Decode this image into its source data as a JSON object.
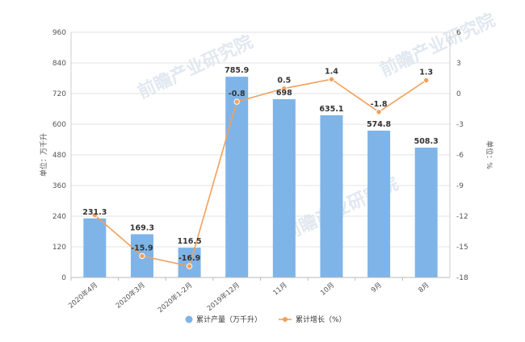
{
  "chart_data": {
    "type": "bar+line",
    "categories": [
      "2020年4月",
      "2020年3月",
      "2020年1-2月",
      "2019年12月",
      "11月",
      "10月",
      "9月",
      "8月"
    ],
    "series": [
      {
        "name": "累计产量（万千升）",
        "type": "bar",
        "axis": "left",
        "color": "#7eb4e8",
        "values": [
          231.3,
          169.3,
          116.5,
          785.9,
          698,
          635.1,
          574.8,
          508.3
        ],
        "labels": [
          "231.3",
          "169.3",
          "116.5",
          "785.9",
          "698",
          "635.1",
          "574.8",
          "508.3"
        ]
      },
      {
        "name": "累计增长（%）",
        "type": "line",
        "axis": "right",
        "color": "#f2a05a",
        "values": [
          -11.9,
          -15.9,
          -16.9,
          -0.8,
          0.5,
          1.4,
          -1.8,
          1.3
        ],
        "labels": [
          "",
          "-15.9",
          "-16.9",
          "-0.8",
          "0.5",
          "1.4",
          "-1.8",
          "1.3"
        ]
      }
    ],
    "y_left": {
      "label": "单位：万千升",
      "ylim": [
        0,
        960
      ],
      "ticks": [
        "0",
        "120",
        "240",
        "360",
        "480",
        "600",
        "720",
        "840",
        "960"
      ]
    },
    "y_right": {
      "label": "单位：%",
      "ylim": [
        -18,
        6
      ],
      "ticks": [
        "-18",
        "-15",
        "-12",
        "-9",
        "-6",
        "-3",
        "0",
        "3",
        "6"
      ]
    },
    "grid": true,
    "legend_position": "bottom",
    "watermark": "前瞻产业研究院"
  }
}
